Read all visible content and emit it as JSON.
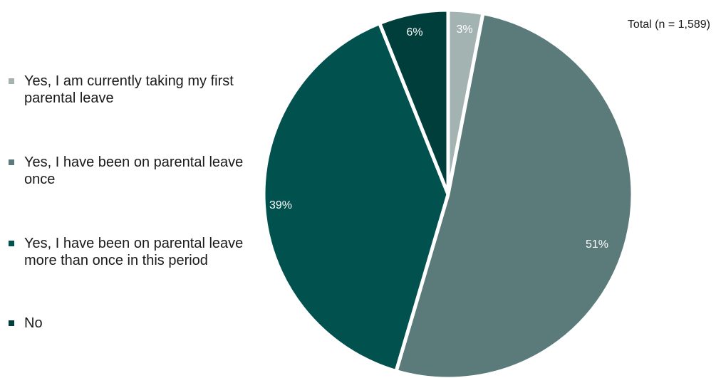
{
  "chart_data": {
    "type": "pie",
    "title": "",
    "annotation": "Total (n = 1,589)",
    "legend_position": "left",
    "start_angle_deg": 0,
    "direction": "clockwise",
    "slices": [
      {
        "label": "Yes, I am currently taking my first parental leave",
        "value": 3,
        "display": "3%",
        "color": "#a3b3b1"
      },
      {
        "label": "Yes, I have been on parental leave once",
        "value": 51,
        "display": "51%",
        "color": "#5a7b7a"
      },
      {
        "label": "Yes, I have been on parental leave more than once in this period",
        "value": 39,
        "display": "39%",
        "color": "#01514f"
      },
      {
        "label": "No",
        "value": 6,
        "display": "6%",
        "color": "#003e3c"
      }
    ]
  }
}
